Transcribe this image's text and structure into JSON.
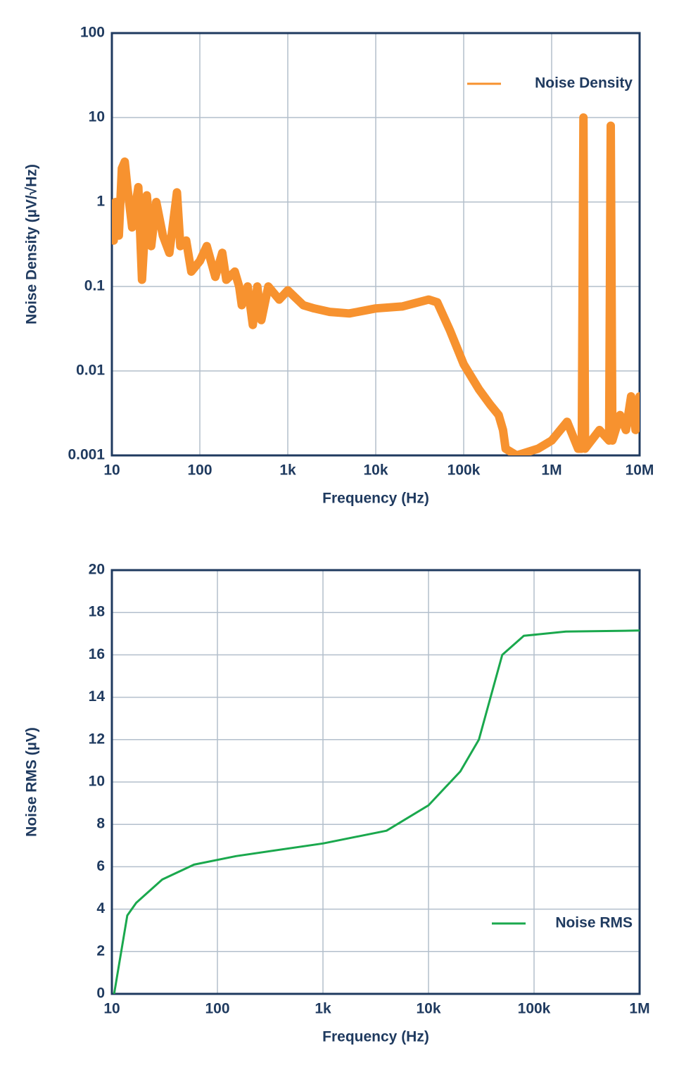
{
  "chart_data": [
    {
      "type": "line",
      "xlabel": "Frequency (Hz)",
      "ylabel": "Noise Density (µV/√Hz)",
      "xscale": "log",
      "yscale": "log",
      "grid": true,
      "legend": "upper right",
      "xlim": [
        10,
        10000000
      ],
      "xticks": [
        10,
        100,
        {
          "value": 1000,
          "label": "1k"
        },
        {
          "value": 10000,
          "label": "10k"
        },
        {
          "value": 100000,
          "label": "100k"
        },
        {
          "value": 1000000,
          "label": "1M"
        },
        {
          "value": 10000000,
          "label": "10M"
        }
      ],
      "ylim": [
        0.001,
        100
      ],
      "yticks": [
        0.001,
        0.01,
        0.1,
        1,
        10,
        100
      ],
      "x": [
        10.5,
        11,
        12,
        13,
        14,
        15,
        17,
        20,
        22,
        25,
        28,
        32,
        38,
        45,
        55,
        60,
        70,
        80,
        100,
        120,
        150,
        180,
        200,
        250,
        280,
        300,
        350,
        400,
        450,
        500,
        600,
        800,
        1000,
        1500,
        2000,
        3000,
        5000,
        10000,
        20000,
        40000,
        50000,
        70000,
        100000,
        150000,
        200000,
        250000,
        280000,
        300000,
        400000,
        700000,
        1000000,
        1500000,
        2000000,
        2200000,
        2300000,
        2400000,
        3500000,
        4500000,
        4700000,
        4900000,
        6000000,
        7000000,
        8000000,
        9000000,
        10000000
      ],
      "series": [
        {
          "name": "Noise Density",
          "color": "#f7922f",
          "values": [
            0.35,
            1.0,
            0.4,
            2.5,
            3.0,
            1.5,
            0.5,
            1.5,
            0.12,
            1.2,
            0.3,
            1.0,
            0.4,
            0.25,
            1.3,
            0.3,
            0.35,
            0.15,
            0.2,
            0.3,
            0.13,
            0.25,
            0.12,
            0.15,
            0.1,
            0.06,
            0.1,
            0.035,
            0.1,
            0.04,
            0.1,
            0.07,
            0.09,
            0.06,
            0.055,
            0.05,
            0.048,
            0.055,
            0.058,
            0.07,
            0.065,
            0.03,
            0.012,
            0.006,
            0.004,
            0.003,
            0.002,
            0.0012,
            0.001,
            0.0012,
            0.0015,
            0.0025,
            0.0012,
            0.0012,
            10,
            0.0012,
            0.002,
            0.0015,
            8,
            0.0015,
            0.003,
            0.002,
            0.005,
            0.002,
            0.005
          ]
        }
      ]
    },
    {
      "type": "line",
      "xlabel": "Frequency (Hz)",
      "ylabel": "Noise RMS (µV)",
      "xscale": "log",
      "yscale": "linear",
      "grid": true,
      "legend": "lower right",
      "xlim": [
        10,
        1000000
      ],
      "xticks": [
        10,
        100,
        {
          "value": 1000,
          "label": "1k"
        },
        {
          "value": 10000,
          "label": "10k"
        },
        {
          "value": 100000,
          "label": "100k"
        },
        {
          "value": 1000000,
          "label": "1M"
        }
      ],
      "ylim": [
        0,
        20
      ],
      "yticks": [
        0,
        2,
        4,
        6,
        8,
        10,
        12,
        14,
        16,
        18,
        20
      ],
      "x": [
        10.5,
        14,
        17,
        30,
        60,
        150,
        1000,
        4000,
        10000,
        20000,
        30000,
        50000,
        80000,
        200000,
        1000000
      ],
      "series": [
        {
          "name": "Noise RMS",
          "color": "#1aa84d",
          "values": [
            0,
            3.7,
            4.3,
            5.4,
            6.1,
            6.5,
            7.1,
            7.7,
            8.9,
            10.5,
            12,
            16,
            16.9,
            17.1,
            17.15
          ]
        }
      ]
    }
  ]
}
